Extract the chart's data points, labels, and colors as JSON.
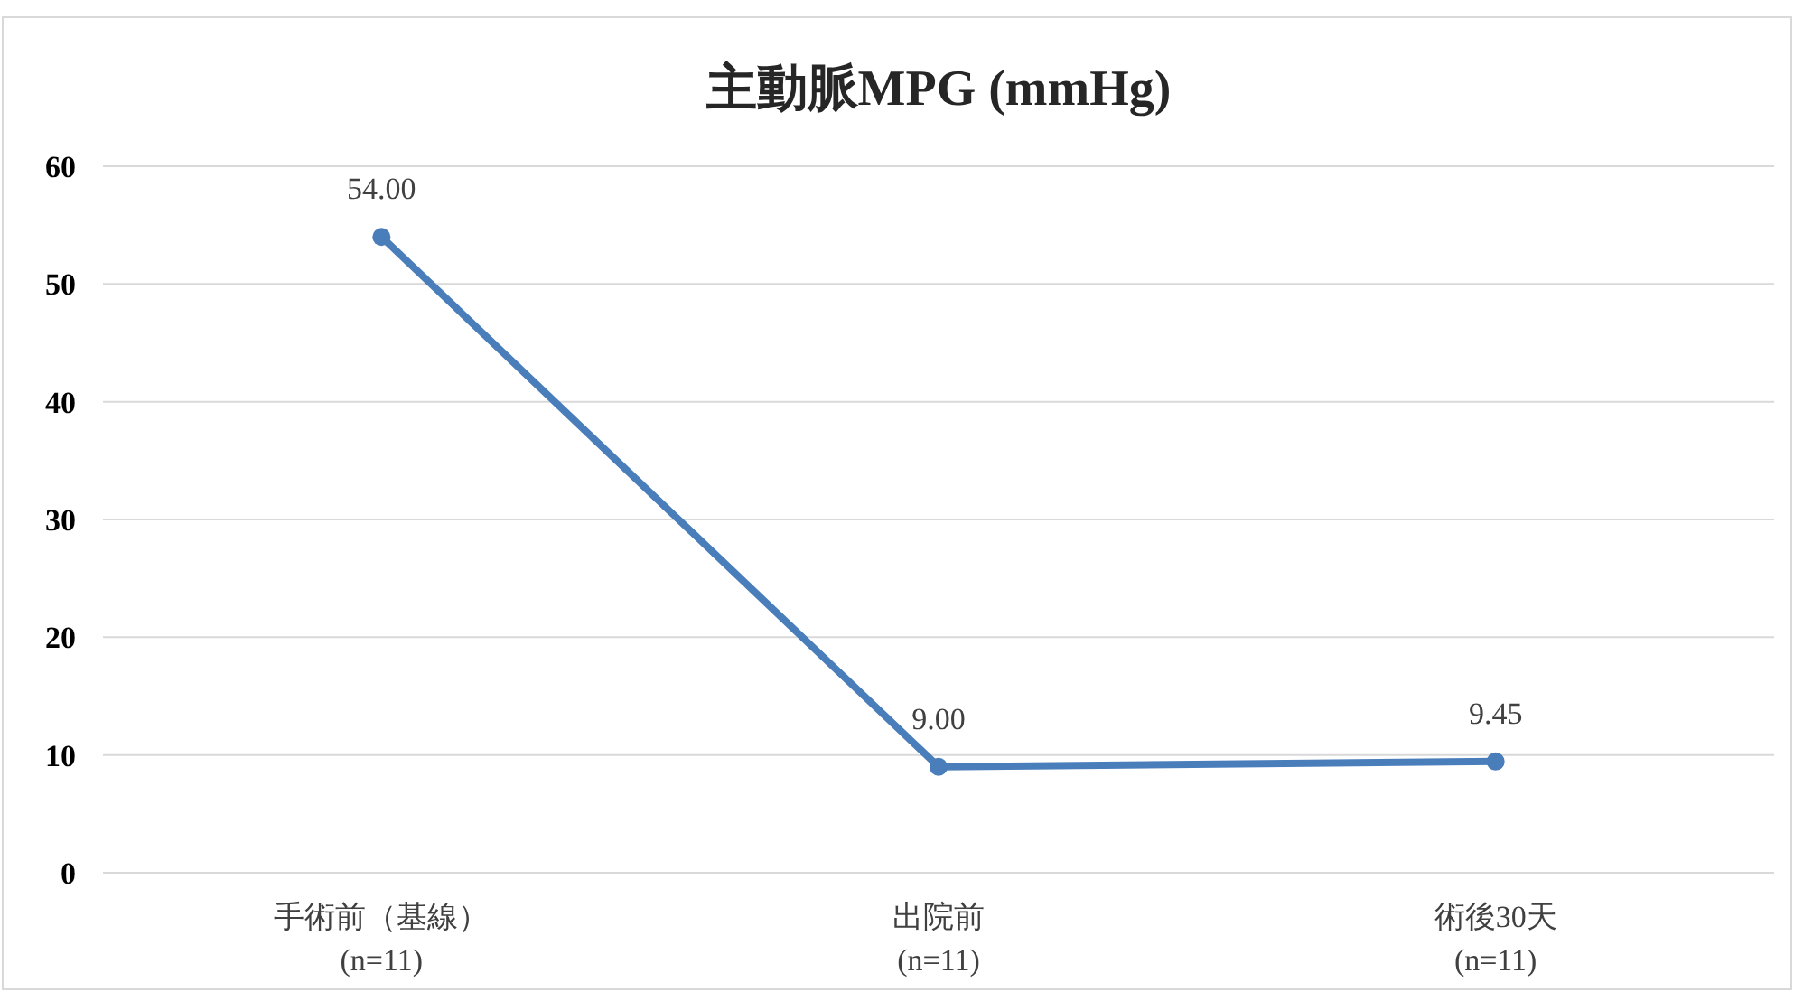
{
  "chart_data": {
    "type": "line",
    "title": "主動脈MPG (mmHg)",
    "categories": [
      "手術前（基線）\n(n=11)",
      "出院前\n(n=11)",
      "術後30天\n(n=11)"
    ],
    "series": [
      {
        "color": "#4a7ebb",
        "values": [
          54.0,
          9.0,
          9.45
        ],
        "value_labels": [
          "54.00",
          "9.00",
          "9.45"
        ]
      }
    ],
    "ylim": [
      0,
      60
    ],
    "yticks": [
      0,
      10,
      20,
      30,
      40,
      50,
      60
    ],
    "grid": "y",
    "marker": "circle",
    "line_style": "solid"
  }
}
